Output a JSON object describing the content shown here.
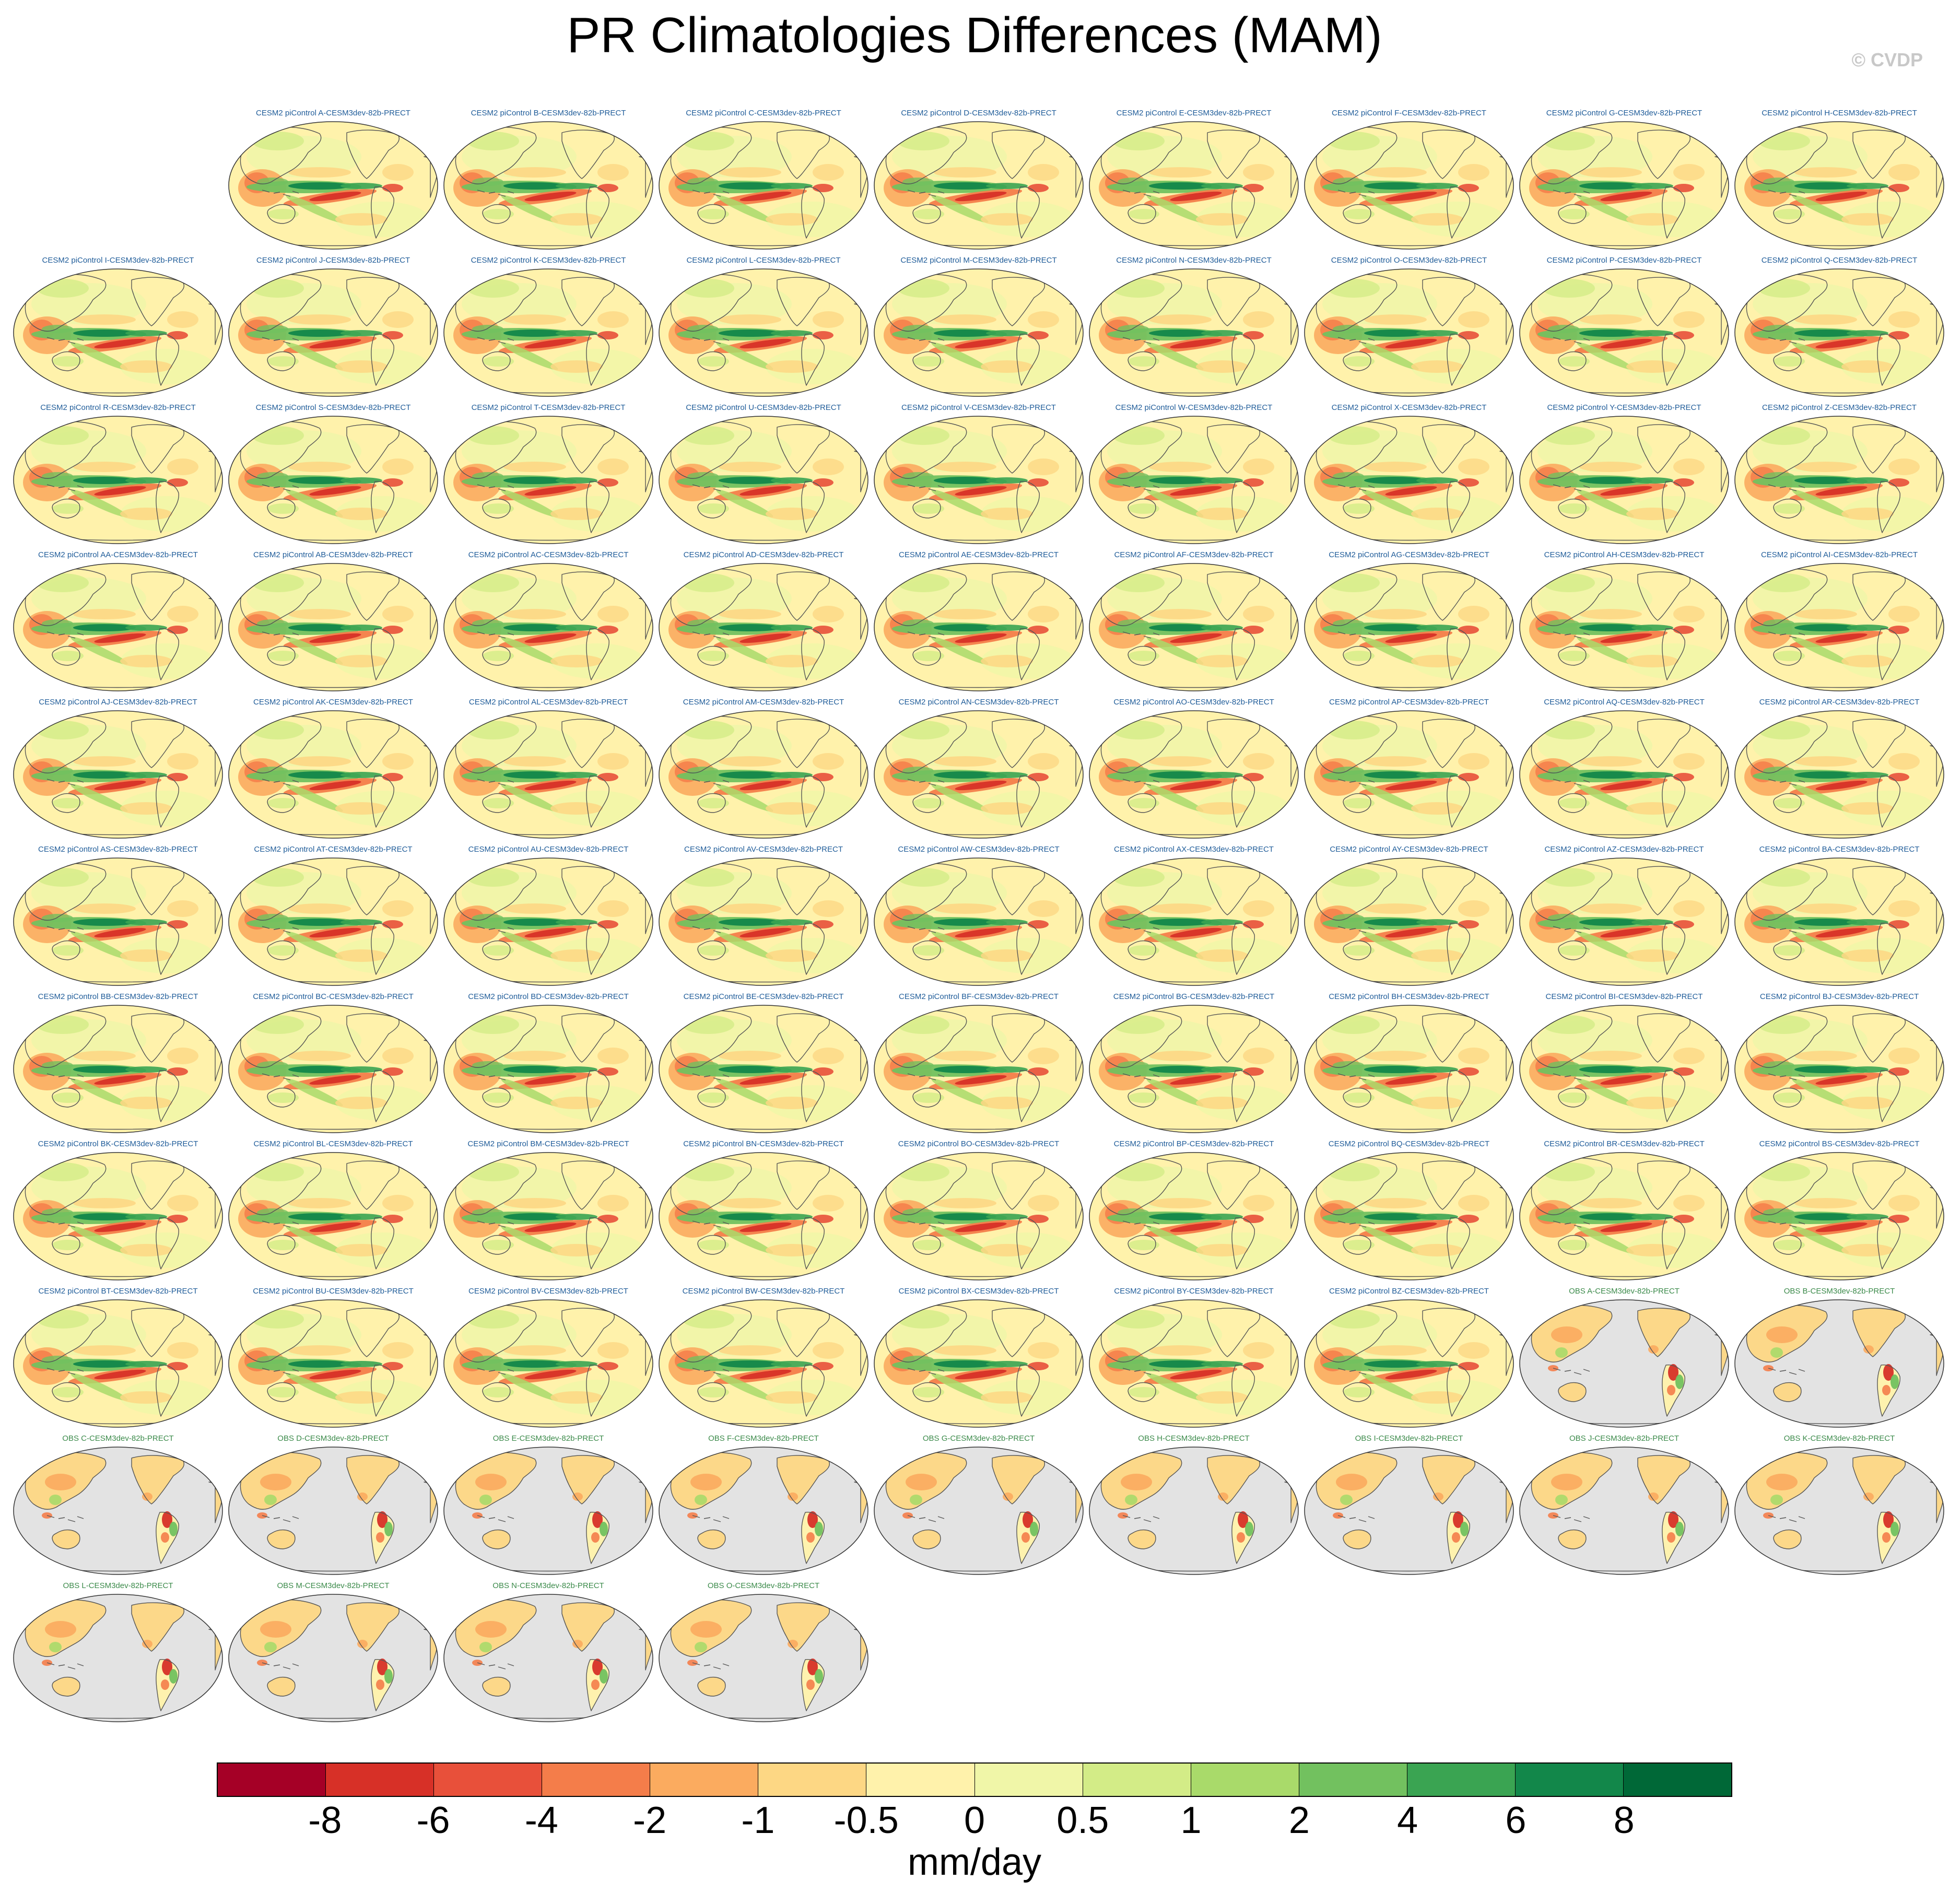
{
  "title": "PR Climatologies Differences (MAM)",
  "copyright": "© CVDP",
  "chart_data": {
    "type": "heatmap",
    "title": "PR Climatologies Differences (MAM)",
    "projection": "Robinson global map, Pacific-centered",
    "variable": "PR (precipitation) climatology difference",
    "season": "MAM",
    "panels": [
      {
        "title": "CESM2 piControl A-CESM3dev-82b-PRECT",
        "kind": "model"
      },
      {
        "title": "CESM2 piControl B-CESM3dev-82b-PRECT",
        "kind": "model"
      },
      {
        "title": "CESM2 piControl C-CESM3dev-82b-PRECT",
        "kind": "model"
      },
      {
        "title": "CESM2 piControl D-CESM3dev-82b-PRECT",
        "kind": "model"
      },
      {
        "title": "CESM2 piControl E-CESM3dev-82b-PRECT",
        "kind": "model"
      },
      {
        "title": "CESM2 piControl F-CESM3dev-82b-PRECT",
        "kind": "model"
      },
      {
        "title": "CESM2 piControl G-CESM3dev-82b-PRECT",
        "kind": "model"
      },
      {
        "title": "CESM2 piControl H-CESM3dev-82b-PRECT",
        "kind": "model"
      },
      {
        "title": "CESM2 piControl I-CESM3dev-82b-PRECT",
        "kind": "model"
      },
      {
        "title": "CESM2 piControl J-CESM3dev-82b-PRECT",
        "kind": "model"
      },
      {
        "title": "CESM2 piControl K-CESM3dev-82b-PRECT",
        "kind": "model"
      },
      {
        "title": "CESM2 piControl L-CESM3dev-82b-PRECT",
        "kind": "model"
      },
      {
        "title": "CESM2 piControl M-CESM3dev-82b-PRECT",
        "kind": "model"
      },
      {
        "title": "CESM2 piControl N-CESM3dev-82b-PRECT",
        "kind": "model"
      },
      {
        "title": "CESM2 piControl O-CESM3dev-82b-PRECT",
        "kind": "model"
      },
      {
        "title": "CESM2 piControl P-CESM3dev-82b-PRECT",
        "kind": "model"
      },
      {
        "title": "CESM2 piControl Q-CESM3dev-82b-PRECT",
        "kind": "model"
      },
      {
        "title": "CESM2 piControl R-CESM3dev-82b-PRECT",
        "kind": "model"
      },
      {
        "title": "CESM2 piControl S-CESM3dev-82b-PRECT",
        "kind": "model"
      },
      {
        "title": "CESM2 piControl T-CESM3dev-82b-PRECT",
        "kind": "model"
      },
      {
        "title": "CESM2 piControl U-CESM3dev-82b-PRECT",
        "kind": "model"
      },
      {
        "title": "CESM2 piControl V-CESM3dev-82b-PRECT",
        "kind": "model"
      },
      {
        "title": "CESM2 piControl W-CESM3dev-82b-PRECT",
        "kind": "model"
      },
      {
        "title": "CESM2 piControl X-CESM3dev-82b-PRECT",
        "kind": "model"
      },
      {
        "title": "CESM2 piControl Y-CESM3dev-82b-PRECT",
        "kind": "model"
      },
      {
        "title": "CESM2 piControl Z-CESM3dev-82b-PRECT",
        "kind": "model"
      },
      {
        "title": "CESM2 piControl AA-CESM3dev-82b-PRECT",
        "kind": "model"
      },
      {
        "title": "CESM2 piControl AB-CESM3dev-82b-PRECT",
        "kind": "model"
      },
      {
        "title": "CESM2 piControl AC-CESM3dev-82b-PRECT",
        "kind": "model"
      },
      {
        "title": "CESM2 piControl AD-CESM3dev-82b-PRECT",
        "kind": "model"
      },
      {
        "title": "CESM2 piControl AE-CESM3dev-82b-PRECT",
        "kind": "model"
      },
      {
        "title": "CESM2 piControl AF-CESM3dev-82b-PRECT",
        "kind": "model"
      },
      {
        "title": "CESM2 piControl AG-CESM3dev-82b-PRECT",
        "kind": "model"
      },
      {
        "title": "CESM2 piControl AH-CESM3dev-82b-PRECT",
        "kind": "model"
      },
      {
        "title": "CESM2 piControl AI-CESM3dev-82b-PRECT",
        "kind": "model"
      },
      {
        "title": "CESM2 piControl AJ-CESM3dev-82b-PRECT",
        "kind": "model"
      },
      {
        "title": "CESM2 piControl AK-CESM3dev-82b-PRECT",
        "kind": "model"
      },
      {
        "title": "CESM2 piControl AL-CESM3dev-82b-PRECT",
        "kind": "model"
      },
      {
        "title": "CESM2 piControl AM-CESM3dev-82b-PRECT",
        "kind": "model"
      },
      {
        "title": "CESM2 piControl AN-CESM3dev-82b-PRECT",
        "kind": "model"
      },
      {
        "title": "CESM2 piControl AO-CESM3dev-82b-PRECT",
        "kind": "model"
      },
      {
        "title": "CESM2 piControl AP-CESM3dev-82b-PRECT",
        "kind": "model"
      },
      {
        "title": "CESM2 piControl AQ-CESM3dev-82b-PRECT",
        "kind": "model"
      },
      {
        "title": "CESM2 piControl AR-CESM3dev-82b-PRECT",
        "kind": "model"
      },
      {
        "title": "CESM2 piControl AS-CESM3dev-82b-PRECT",
        "kind": "model"
      },
      {
        "title": "CESM2 piControl AT-CESM3dev-82b-PRECT",
        "kind": "model"
      },
      {
        "title": "CESM2 piControl AU-CESM3dev-82b-PRECT",
        "kind": "model"
      },
      {
        "title": "CESM2 piControl AV-CESM3dev-82b-PRECT",
        "kind": "model"
      },
      {
        "title": "CESM2 piControl AW-CESM3dev-82b-PRECT",
        "kind": "model"
      },
      {
        "title": "CESM2 piControl AX-CESM3dev-82b-PRECT",
        "kind": "model"
      },
      {
        "title": "CESM2 piControl AY-CESM3dev-82b-PRECT",
        "kind": "model"
      },
      {
        "title": "CESM2 piControl AZ-CESM3dev-82b-PRECT",
        "kind": "model"
      },
      {
        "title": "CESM2 piControl BA-CESM3dev-82b-PRECT",
        "kind": "model"
      },
      {
        "title": "CESM2 piControl BB-CESM3dev-82b-PRECT",
        "kind": "model"
      },
      {
        "title": "CESM2 piControl BC-CESM3dev-82b-PRECT",
        "kind": "model"
      },
      {
        "title": "CESM2 piControl BD-CESM3dev-82b-PRECT",
        "kind": "model"
      },
      {
        "title": "CESM2 piControl BE-CESM3dev-82b-PRECT",
        "kind": "model"
      },
      {
        "title": "CESM2 piControl BF-CESM3dev-82b-PRECT",
        "kind": "model"
      },
      {
        "title": "CESM2 piControl BG-CESM3dev-82b-PRECT",
        "kind": "model"
      },
      {
        "title": "CESM2 piControl BH-CESM3dev-82b-PRECT",
        "kind": "model"
      },
      {
        "title": "CESM2 piControl BI-CESM3dev-82b-PRECT",
        "kind": "model"
      },
      {
        "title": "CESM2 piControl BJ-CESM3dev-82b-PRECT",
        "kind": "model"
      },
      {
        "title": "CESM2 piControl BK-CESM3dev-82b-PRECT",
        "kind": "model"
      },
      {
        "title": "CESM2 piControl BL-CESM3dev-82b-PRECT",
        "kind": "model"
      },
      {
        "title": "CESM2 piControl BM-CESM3dev-82b-PRECT",
        "kind": "model"
      },
      {
        "title": "CESM2 piControl BN-CESM3dev-82b-PRECT",
        "kind": "model"
      },
      {
        "title": "CESM2 piControl BO-CESM3dev-82b-PRECT",
        "kind": "model"
      },
      {
        "title": "CESM2 piControl BP-CESM3dev-82b-PRECT",
        "kind": "model"
      },
      {
        "title": "CESM2 piControl BQ-CESM3dev-82b-PRECT",
        "kind": "model"
      },
      {
        "title": "CESM2 piControl BR-CESM3dev-82b-PRECT",
        "kind": "model"
      },
      {
        "title": "CESM2 piControl BS-CESM3dev-82b-PRECT",
        "kind": "model"
      },
      {
        "title": "CESM2 piControl BT-CESM3dev-82b-PRECT",
        "kind": "model"
      },
      {
        "title": "CESM2 piControl BU-CESM3dev-82b-PRECT",
        "kind": "model"
      },
      {
        "title": "CESM2 piControl BV-CESM3dev-82b-PRECT",
        "kind": "model"
      },
      {
        "title": "CESM2 piControl BW-CESM3dev-82b-PRECT",
        "kind": "model"
      },
      {
        "title": "CESM2 piControl BX-CESM3dev-82b-PRECT",
        "kind": "model"
      },
      {
        "title": "CESM2 piControl BY-CESM3dev-82b-PRECT",
        "kind": "model"
      },
      {
        "title": "CESM2 piControl BZ-CESM3dev-82b-PRECT",
        "kind": "model"
      },
      {
        "title": "OBS A-CESM3dev-82b-PRECT",
        "kind": "obs"
      },
      {
        "title": "OBS B-CESM3dev-82b-PRECT",
        "kind": "obs"
      },
      {
        "title": "OBS C-CESM3dev-82b-PRECT",
        "kind": "obs"
      },
      {
        "title": "OBS D-CESM3dev-82b-PRECT",
        "kind": "obs"
      },
      {
        "title": "OBS E-CESM3dev-82b-PRECT",
        "kind": "obs"
      },
      {
        "title": "OBS F-CESM3dev-82b-PRECT",
        "kind": "obs"
      },
      {
        "title": "OBS G-CESM3dev-82b-PRECT",
        "kind": "obs"
      },
      {
        "title": "OBS H-CESM3dev-82b-PRECT",
        "kind": "obs"
      },
      {
        "title": "OBS I-CESM3dev-82b-PRECT",
        "kind": "obs"
      },
      {
        "title": "OBS J-CESM3dev-82b-PRECT",
        "kind": "obs"
      },
      {
        "title": "OBS K-CESM3dev-82b-PRECT",
        "kind": "obs"
      },
      {
        "title": "OBS L-CESM3dev-82b-PRECT",
        "kind": "obs"
      },
      {
        "title": "OBS M-CESM3dev-82b-PRECT",
        "kind": "obs"
      },
      {
        "title": "OBS N-CESM3dev-82b-PRECT",
        "kind": "obs"
      },
      {
        "title": "OBS O-CESM3dev-82b-PRECT",
        "kind": "obs"
      }
    ],
    "colorbar": {
      "levels": [
        "-8",
        "-6",
        "-4",
        "-2",
        "-1",
        "-0.5",
        "0",
        "0.5",
        "1",
        "2",
        "4",
        "6",
        "8"
      ],
      "colors": [
        "#a50026",
        "#d73027",
        "#e8503a",
        "#f47d4a",
        "#fbab5f",
        "#fdd784",
        "#fff2ab",
        "#f0f6a8",
        "#d3ec87",
        "#a9da6a",
        "#72c15f",
        "#3aa452",
        "#12874a",
        "#006837"
      ],
      "units": "mm/day"
    }
  },
  "colors": {
    "background": "#ffffff",
    "model_title": "#1f5c99",
    "obs_title": "#3b8a4a",
    "coast": "#555555",
    "missing": "#e3e3e3",
    "copyright": "#c8c8c8"
  }
}
